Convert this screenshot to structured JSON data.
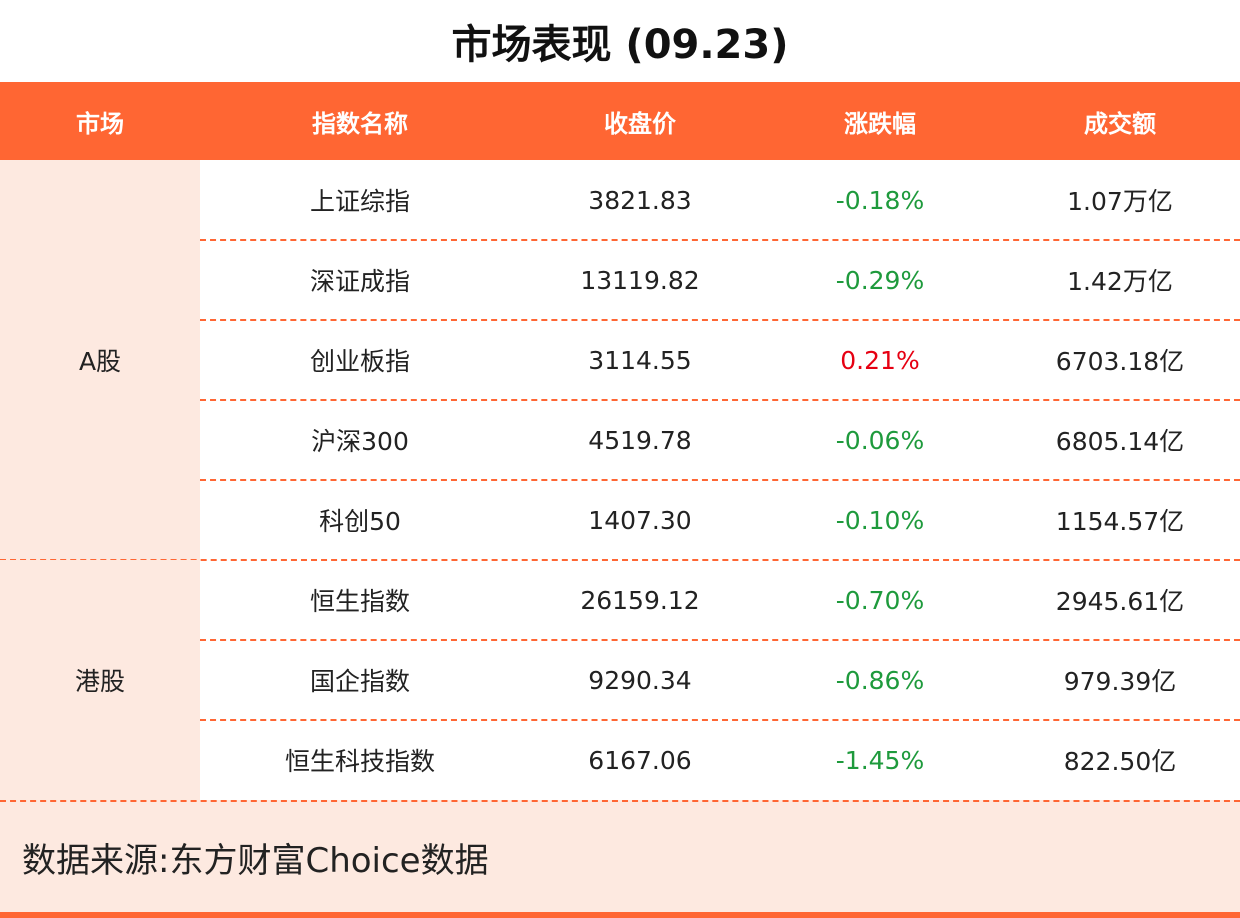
{
  "title": "市场表现 (09.23)",
  "table": {
    "headers": [
      "市场",
      "指数名称",
      "收盘价",
      "涨跌幅",
      "成交额"
    ],
    "groups": [
      {
        "market": "A股",
        "rows": [
          [
            "上证综指",
            "3821.83",
            "-0.18%",
            "1.07万亿"
          ],
          [
            "深证成指",
            "13119.82",
            "-0.29%",
            "1.42万亿"
          ],
          [
            "创业板指",
            "3114.55",
            "0.21%",
            "6703.18亿"
          ],
          [
            "沪深300",
            "4519.78",
            "-0.06%",
            "6805.14亿"
          ],
          [
            "科创50",
            "1407.30",
            "-0.10%",
            "1154.57亿"
          ]
        ]
      },
      {
        "market": "港股",
        "rows": [
          [
            "恒生指数",
            "26159.12",
            "-0.70%",
            "2945.61亿"
          ],
          [
            "国企指数",
            "9290.34",
            "-0.86%",
            "979.39亿"
          ],
          [
            "恒生科技指数",
            "6167.06",
            "-1.45%",
            "822.50亿"
          ]
        ]
      }
    ]
  },
  "footer": "数据来源:东方财富Choice数据",
  "colors": {
    "up": "#e60012",
    "down": "#1e9a3c"
  }
}
